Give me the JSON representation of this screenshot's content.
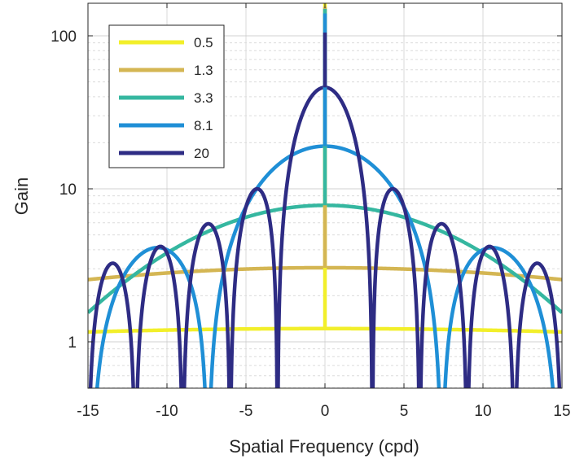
{
  "chart_data": {
    "type": "line",
    "title": "",
    "xlabel": "Spatial Frequency (cpd)",
    "ylabel": "Gain",
    "xlim": [
      -15,
      15
    ],
    "ylim": [
      0.5,
      160
    ],
    "yscale": "log",
    "xticks": [
      -15,
      -10,
      -5,
      0,
      5,
      10,
      15
    ],
    "xtick_labels": [
      "-15",
      "-10",
      "-5",
      "0",
      "5",
      "10",
      "15"
    ],
    "yticks": [
      1,
      10,
      100
    ],
    "ytick_labels": [
      "1",
      "10",
      "100"
    ],
    "grid": true,
    "minor_grid": true,
    "legend_position": "top-left",
    "series": [
      {
        "name": "0.5",
        "color": "#f2ef2a",
        "peak_gain": 170,
        "flank_gain_at_zero": 1.22,
        "gain_at_15": 1.16,
        "zero_spacing_cpd": null
      },
      {
        "name": "1.3",
        "color": "#d4b653",
        "peak_gain": 155,
        "flank_gain_at_zero": 3.05,
        "gain_at_15": 2.55,
        "zero_spacing_cpd": null
      },
      {
        "name": "3.3",
        "color": "#35b7a0",
        "peak_gain": 150,
        "flank_gain_at_zero": 7.8,
        "gain_at_15": 1.55,
        "zero_spacing_cpd": null
      },
      {
        "name": "8.1",
        "color": "#1f8fd6",
        "peak_gain": 140,
        "flank_gain_at_zero": 19,
        "gain_at_15": 0.5,
        "zero_spacing_cpd": 7.4
      },
      {
        "name": "20",
        "color": "#2e2c84",
        "peak_gain": 105,
        "flank_gain_at_zero": 46,
        "gain_at_15": 0.5,
        "zero_spacing_cpd": 3,
        "side_lobe_peaks": [
          {
            "x": 4.4,
            "y": 10.2
          },
          {
            "x": 7.4,
            "y": 6.0
          },
          {
            "x": 10.5,
            "y": 4.3
          },
          {
            "x": 13.5,
            "y": 3.3
          },
          {
            "x": -4.4,
            "y": 10.2
          },
          {
            "x": -7.4,
            "y": 6.0
          },
          {
            "x": -10.5,
            "y": 4.3
          },
          {
            "x": -13.5,
            "y": 3.3
          }
        ]
      }
    ]
  }
}
